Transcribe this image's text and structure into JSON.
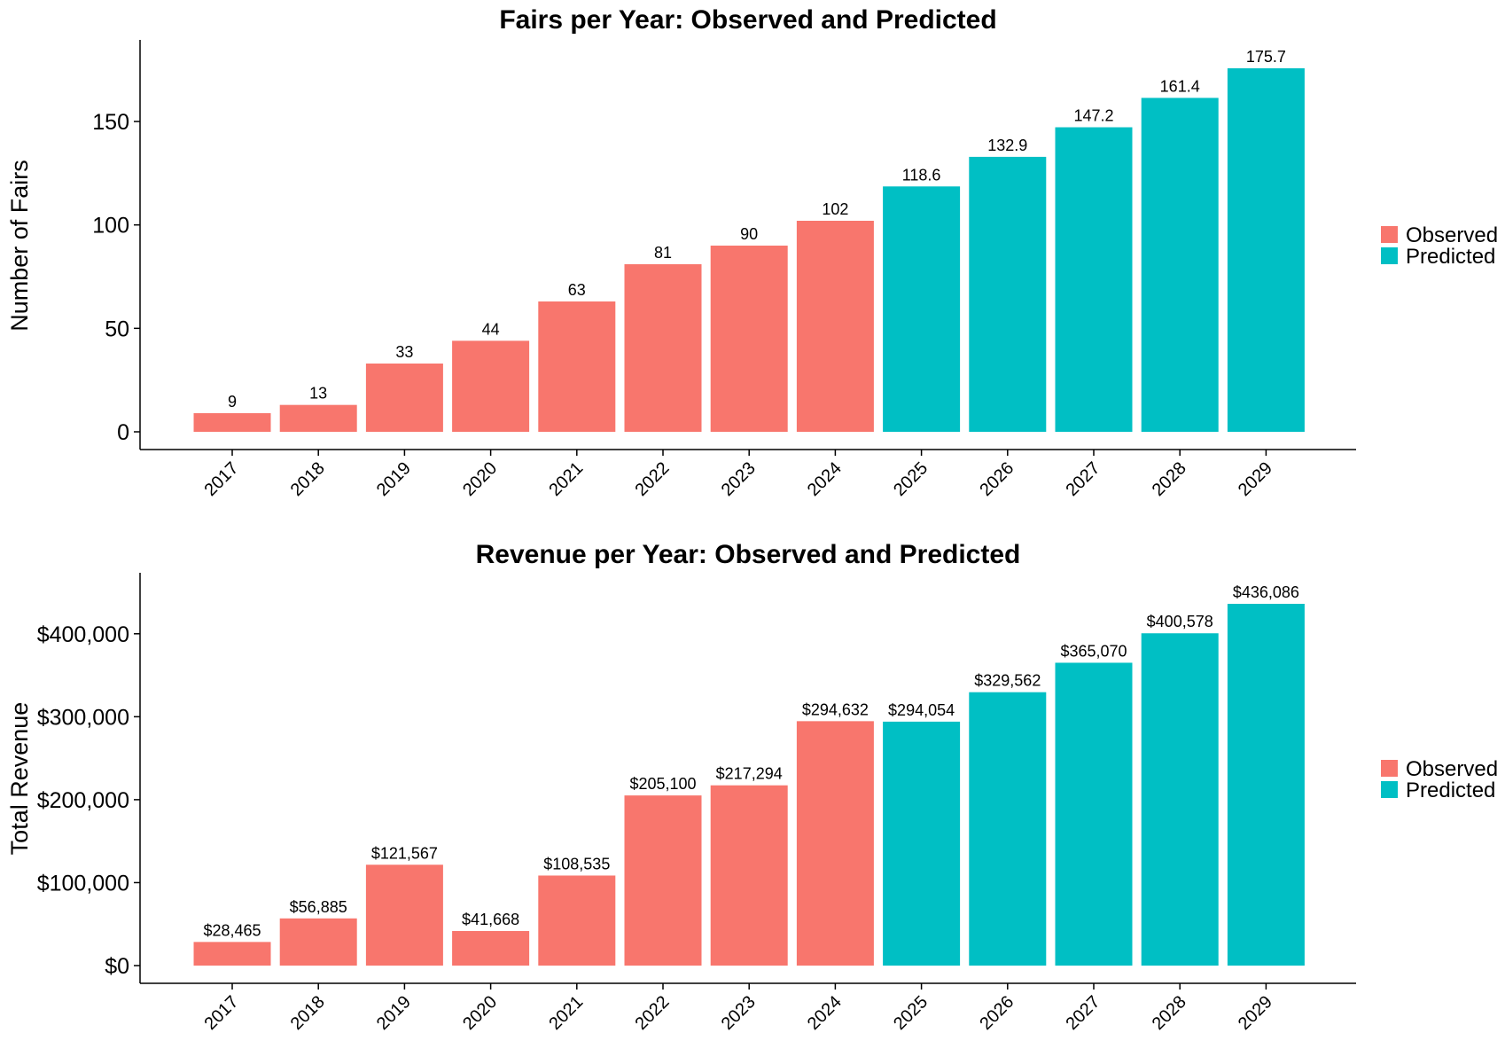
{
  "colors": {
    "observed": "#F8766D",
    "predicted": "#00BFC4"
  },
  "chart_data": [
    {
      "type": "bar",
      "title": "Fairs per Year: Observed and Predicted",
      "xlabel": "",
      "ylabel": "Number of Fairs",
      "ylim": [
        0,
        180
      ],
      "yticks": [
        0,
        50,
        100,
        150
      ],
      "ytick_labels": [
        "0",
        "50",
        "100",
        "150"
      ],
      "categories": [
        "2017",
        "2018",
        "2019",
        "2020",
        "2021",
        "2022",
        "2023",
        "2024",
        "2025",
        "2026",
        "2027",
        "2028",
        "2029"
      ],
      "values": [
        9,
        13,
        33,
        44,
        63,
        81,
        90,
        102,
        118.6,
        132.9,
        147.2,
        161.4,
        175.7
      ],
      "value_labels": [
        "9",
        "13",
        "33",
        "44",
        "63",
        "81",
        "90",
        "102",
        "118.6",
        "132.9",
        "147.2",
        "161.4",
        "175.7"
      ],
      "groups": [
        "Observed",
        "Observed",
        "Observed",
        "Observed",
        "Observed",
        "Observed",
        "Observed",
        "Observed",
        "Predicted",
        "Predicted",
        "Predicted",
        "Predicted",
        "Predicted"
      ],
      "legend": {
        "placement": "right",
        "entries": [
          "Observed",
          "Predicted"
        ]
      }
    },
    {
      "type": "bar",
      "title": "Revenue per Year: Observed and Predicted",
      "xlabel": "",
      "ylabel": "Total Revenue",
      "ylim": [
        0,
        450000
      ],
      "yticks": [
        0,
        100000,
        200000,
        300000,
        400000
      ],
      "ytick_labels": [
        "$0",
        "$100,000",
        "$200,000",
        "$300,000",
        "$400,000"
      ],
      "categories": [
        "2017",
        "2018",
        "2019",
        "2020",
        "2021",
        "2022",
        "2023",
        "2024",
        "2025",
        "2026",
        "2027",
        "2028",
        "2029"
      ],
      "values": [
        28465,
        56885,
        121567,
        41668,
        108535,
        205100,
        217294,
        294632,
        294054,
        329562,
        365070,
        400578,
        436086
      ],
      "value_labels": [
        "$28,465",
        "$56,885",
        "$121,567",
        "$41,668",
        "$108,535",
        "$205,100",
        "$217,294",
        "$294,632",
        "$294,054",
        "$329,562",
        "$365,070",
        "$400,578",
        "$436,086"
      ],
      "groups": [
        "Observed",
        "Observed",
        "Observed",
        "Observed",
        "Observed",
        "Observed",
        "Observed",
        "Observed",
        "Predicted",
        "Predicted",
        "Predicted",
        "Predicted",
        "Predicted"
      ],
      "legend": {
        "placement": "right",
        "entries": [
          "Observed",
          "Predicted"
        ]
      }
    }
  ]
}
